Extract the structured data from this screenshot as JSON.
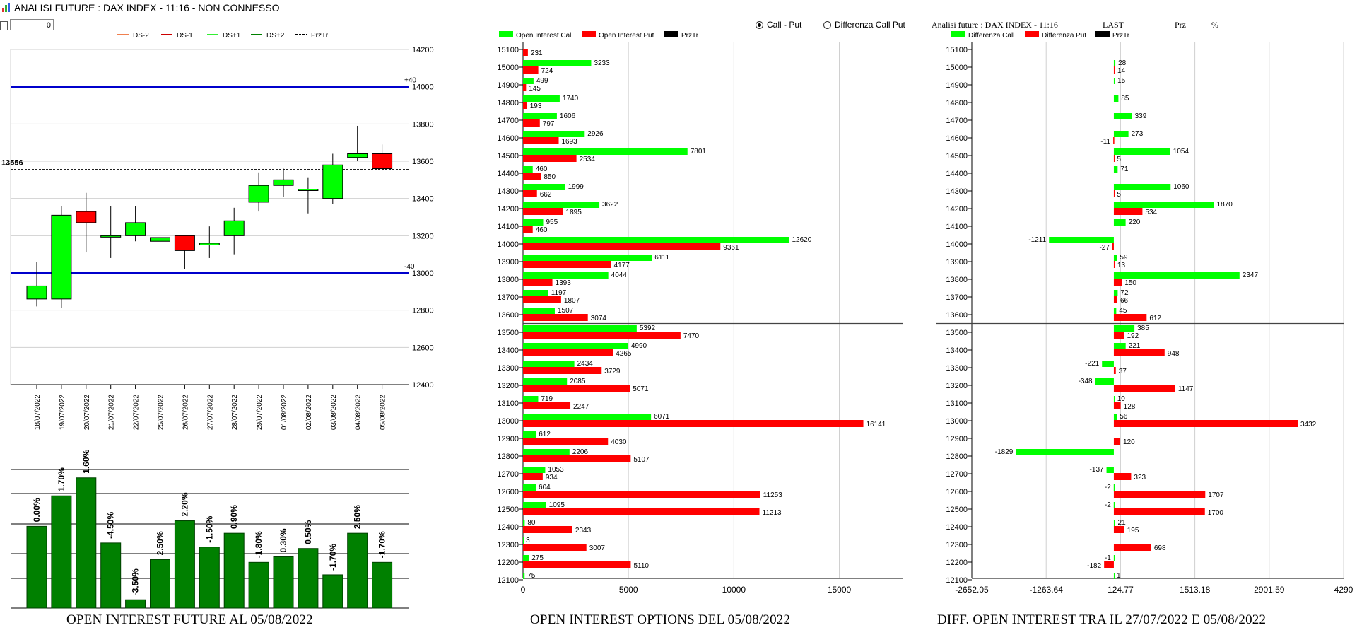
{
  "window": {
    "title": "ANALISI FUTURE : DAX INDEX - 11:16 - NON CONNESSO"
  },
  "controls": {
    "spin_value": "0",
    "radio_call_put": "Call - Put",
    "radio_diff": "Differenza Call Put"
  },
  "panel3_header": {
    "text": "Analisi future : DAX INDEX - 11:16",
    "last": "LAST",
    "prz": "Prz",
    "pct": "%"
  },
  "titles": {
    "future": "OPEN INTEREST FUTURE AL 05/08/2022",
    "options": "OPEN INTEREST OPTIONS DEL 05/08/2022",
    "diff": "DIFF. OPEN INTEREST TRA IL 27/07/2022 E 05/08/2022"
  },
  "colors": {
    "call": "#00ff00",
    "put": "#ff0000",
    "dark_green": "#008000",
    "blue": "#0000cc"
  },
  "chart_data": [
    {
      "type": "candlestick",
      "legend": [
        "DS-2",
        "DS-1",
        "DS+1",
        "DS+2",
        "PrzTr"
      ],
      "legend_colors": [
        "#f08050",
        "#cc0000",
        "#33ee33",
        "#008000",
        "#000000"
      ],
      "ylim": [
        12400,
        14200
      ],
      "yticks": [
        12400,
        12600,
        12800,
        13000,
        13200,
        13400,
        13600,
        13800,
        14000,
        14200
      ],
      "price_line": 13556,
      "price_label": "13556",
      "bands": [
        {
          "value": 14000,
          "label": "+40"
        },
        {
          "value": 13000,
          "label": "-40"
        }
      ],
      "dates": [
        "18/07/2022",
        "19/07/2022",
        "20/07/2022",
        "21/07/2022",
        "22/07/2022",
        "25/07/2022",
        "26/07/2022",
        "27/07/2022",
        "28/07/2022",
        "29/07/2022",
        "01/08/2022",
        "02/08/2022",
        "03/08/2022",
        "04/08/2022",
        "05/08/2022"
      ],
      "ohlc": [
        [
          12860,
          13060,
          12820,
          12930
        ],
        [
          12860,
          13360,
          12810,
          13310
        ],
        [
          13330,
          13430,
          13110,
          13270
        ],
        [
          13200,
          13360,
          13080,
          13200
        ],
        [
          13200,
          13360,
          13170,
          13270
        ],
        [
          13170,
          13330,
          13120,
          13190
        ],
        [
          13200,
          13200,
          13020,
          13120
        ],
        [
          13150,
          13250,
          13080,
          13160
        ],
        [
          13200,
          13350,
          13100,
          13280
        ],
        [
          13380,
          13540,
          13330,
          13470
        ],
        [
          13470,
          13560,
          13410,
          13500
        ],
        [
          13450,
          13510,
          13320,
          13450
        ],
        [
          13400,
          13640,
          13370,
          13580
        ],
        [
          13620,
          13790,
          13600,
          13640
        ],
        [
          13640,
          13690,
          13550,
          13560
        ]
      ]
    },
    {
      "type": "bar",
      "percents": [
        "0.00%",
        "1.70%",
        "1.60%",
        "-4.50%",
        "-3.50%",
        "2.50%",
        "2.20%",
        "-1.50%",
        "0.90%",
        "-1.80%",
        "0.30%",
        "0.50%",
        "-1.70%",
        "2.50%",
        "-1.70%"
      ],
      "relative_heights": [
        0.59,
        0.81,
        0.94,
        0.47,
        0.06,
        0.35,
        0.63,
        0.44,
        0.54,
        0.33,
        0.37,
        0.43,
        0.24,
        0.54,
        0.33
      ]
    },
    {
      "type": "bar",
      "orientation": "horizontal",
      "legend": [
        "Open Interest Call",
        "Open Interest Put",
        "PrzTr"
      ],
      "strikes": [
        15100,
        15000,
        14900,
        14800,
        14700,
        14600,
        14500,
        14400,
        14300,
        14200,
        14100,
        14000,
        13900,
        13800,
        13700,
        13600,
        13500,
        13400,
        13300,
        13200,
        13100,
        13000,
        12900,
        12800,
        12700,
        12600,
        12500,
        12400,
        12300,
        12200,
        12100
      ],
      "call": [
        null,
        3233,
        499,
        1740,
        1606,
        2926,
        7801,
        460,
        1999,
        3622,
        955,
        12620,
        6111,
        4044,
        1197,
        1507,
        5392,
        4990,
        2434,
        2085,
        719,
        6071,
        612,
        2206,
        1053,
        604,
        1095,
        80,
        3,
        275,
        75
      ],
      "put": [
        231,
        724,
        145,
        193,
        797,
        1693,
        2534,
        850,
        662,
        1895,
        460,
        9361,
        4177,
        1393,
        1807,
        3074,
        7470,
        4265,
        3729,
        5071,
        2247,
        16141,
        4030,
        5107,
        934,
        11253,
        11213,
        2343,
        3007,
        5110,
        null
      ],
      "xlim": [
        0,
        18000
      ],
      "xticks": [
        0,
        5000,
        10000,
        15000
      ],
      "price_line_between": [
        13600,
        13500
      ]
    },
    {
      "type": "bar",
      "orientation": "horizontal",
      "legend": [
        "Differenza Call",
        "Differenza Put",
        "PrzTr"
      ],
      "strikes": [
        15100,
        15000,
        14900,
        14800,
        14700,
        14600,
        14500,
        14400,
        14300,
        14200,
        14100,
        14000,
        13900,
        13800,
        13700,
        13600,
        13500,
        13400,
        13300,
        13200,
        13100,
        13000,
        12900,
        12800,
        12700,
        12600,
        12500,
        12400,
        12300,
        12200,
        12100
      ],
      "call": [
        null,
        28,
        15,
        85,
        339,
        273,
        1054,
        71,
        1060,
        1870,
        220,
        -1211,
        59,
        2347,
        72,
        45,
        385,
        221,
        -221,
        -348,
        10,
        56,
        null,
        -1829,
        -137,
        -2,
        -2,
        21,
        null,
        -1,
        1
      ],
      "put": [
        null,
        14,
        null,
        null,
        null,
        -11,
        5,
        null,
        5,
        534,
        null,
        -27,
        13,
        150,
        66,
        612,
        192,
        948,
        37,
        1147,
        128,
        3432,
        120,
        null,
        323,
        1707,
        1700,
        195,
        698,
        -182,
        null
      ],
      "xlim": [
        -2652.05,
        4290
      ],
      "xticks": [
        "-2652.05",
        "-1263.64",
        "124.77",
        "1513.18",
        "2901.59",
        "4290"
      ],
      "price_line_between": [
        13600,
        13500
      ]
    }
  ]
}
